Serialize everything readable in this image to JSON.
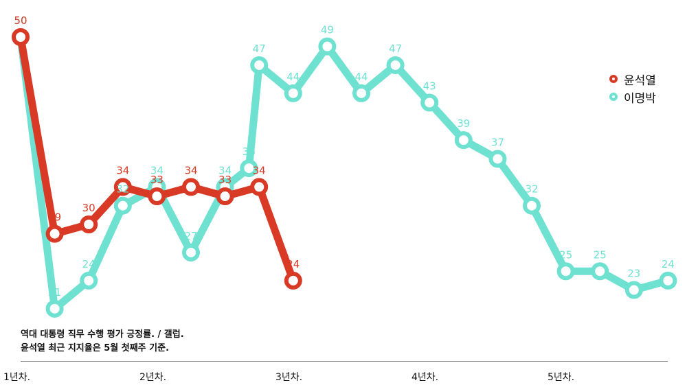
{
  "chart_data": {
    "type": "line",
    "title": "",
    "notes": [
      "역대 대통령 직무 수행 평가 긍정률. / 갤럽.",
      "윤석열 최근 지지율은 5월 첫째주 기준."
    ],
    "x_tick_labels": [
      "1년차.",
      "2년차.",
      "3년차.",
      "4년차.",
      "5년차."
    ],
    "ylim": [
      0,
      60
    ],
    "grid": false,
    "legend_position": "top-right",
    "series": [
      {
        "name": "윤석열",
        "color": "#d93a26",
        "x": [
          1,
          2,
          3,
          4,
          5,
          6,
          7,
          8,
          9
        ],
        "values": [
          50,
          29,
          30,
          34,
          33,
          34,
          33,
          34,
          24
        ]
      },
      {
        "name": "이명박",
        "color": "#6ee1d1",
        "x": [
          1,
          2,
          3,
          4,
          5,
          6,
          7,
          7.7,
          8,
          9,
          10,
          11,
          12,
          13,
          14,
          15,
          16,
          17,
          18,
          19,
          20
        ],
        "values": [
          50,
          21,
          24,
          32,
          34,
          27,
          34,
          36,
          47,
          44,
          49,
          44,
          47,
          43,
          39,
          37,
          32,
          25,
          25,
          23,
          24
        ]
      }
    ]
  }
}
